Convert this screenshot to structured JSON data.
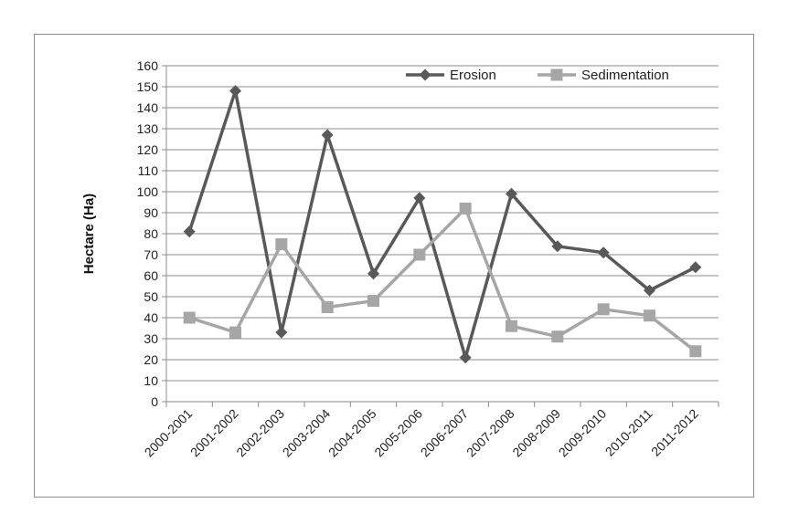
{
  "chart_data": {
    "type": "line",
    "title": "",
    "xlabel": "",
    "ylabel": "Hectare (Ha)",
    "ylim": [
      0,
      160
    ],
    "ytick_step": 10,
    "grid": "horizontal",
    "legend_position": "top-right",
    "categories": [
      "2000-2001",
      "2001-2002",
      "2002-2003",
      "2003-2004",
      "2004-2005",
      "2005-2006",
      "2006-2007",
      "2007-2008",
      "2008-2009",
      "2009-2010",
      "2010-2011",
      "2011-2012"
    ],
    "series": [
      {
        "name": "Erosion",
        "color": "#595959",
        "marker": "diamond",
        "values": [
          81,
          148,
          33,
          127,
          61,
          97,
          21,
          99,
          74,
          71,
          53,
          64
        ]
      },
      {
        "name": "Sedimentation",
        "color": "#a6a6a6",
        "marker": "square",
        "values": [
          40,
          33,
          75,
          45,
          48,
          70,
          92,
          36,
          31,
          44,
          41,
          24
        ]
      }
    ]
  }
}
